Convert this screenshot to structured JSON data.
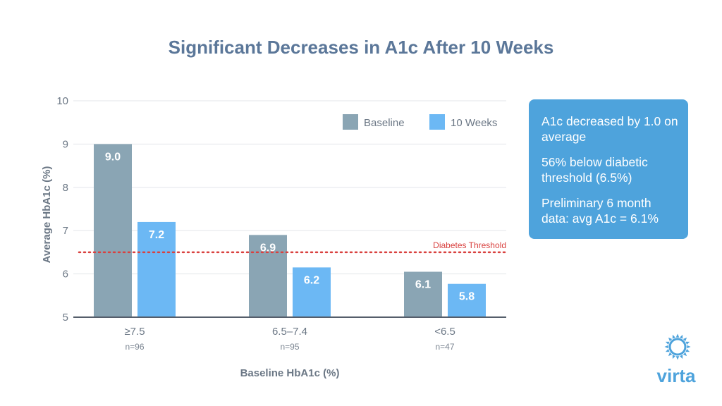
{
  "chart_data": {
    "type": "bar",
    "title": "Significant Decreases in A1c After 10 Weeks",
    "xlabel": "Baseline HbA1c (%)",
    "ylabel": "Average HbA1c (%)",
    "ylim": [
      5,
      10
    ],
    "yticks": [
      "5",
      "6",
      "7",
      "8",
      "9",
      "10"
    ],
    "grid": true,
    "legend_position": "top-right",
    "categories": [
      "≥7.5",
      "6.5–7.4",
      "<6.5"
    ],
    "category_counts": [
      "n=96",
      "n=95",
      "n=47"
    ],
    "series": [
      {
        "name": "Baseline",
        "color": "#8aa5b4",
        "values": [
          9.0,
          6.9,
          6.05
        ],
        "labels": [
          "9.0",
          "6.9",
          "6.1"
        ]
      },
      {
        "name": "10 Weeks",
        "color": "#6cb8f4",
        "values": [
          7.2,
          6.15,
          5.77
        ],
        "labels": [
          "7.2",
          "6.2",
          "5.8"
        ]
      }
    ],
    "threshold": {
      "value": 6.5,
      "label": "Diabetes Threshold",
      "color": "#d9413f"
    }
  },
  "callout": {
    "line1": "A1c decreased by 1.0 on average",
    "line2": "56% below diabetic threshold (6.5%)",
    "line3": "Preliminary 6 month data: avg A1c = 6.1%"
  },
  "brand": {
    "name": "virta",
    "logo_icon": "sun-icon",
    "color": "#4ea3dc"
  }
}
